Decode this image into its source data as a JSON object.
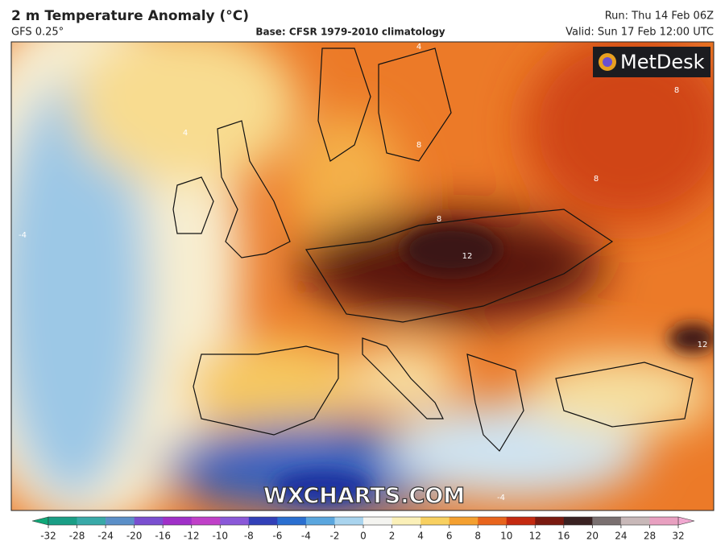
{
  "header": {
    "title": "2 m Temperature Anomaly (°C)",
    "model": "GFS 0.25°",
    "base": "Base: CFSR 1979-2010 climatology",
    "run": "Run: Thu 14 Feb 06Z",
    "valid": "Valid: Sun 17 Feb 12:00 UTC"
  },
  "logo": "MetDesk",
  "watermark": "WXCHARTS.COM",
  "contour_labels": [
    "-4",
    "4",
    "8",
    "12",
    "8",
    "8",
    "4",
    "12",
    "-4",
    "8"
  ],
  "colorbar": {
    "ticks": [
      -32,
      -28,
      -24,
      -20,
      -16,
      -12,
      -10,
      -8,
      -6,
      -4,
      -2,
      0,
      2,
      4,
      6,
      8,
      10,
      12,
      16,
      20,
      24,
      28,
      32
    ],
    "colors": [
      "#1a9e86",
      "#39a9a8",
      "#5b8fc8",
      "#7a4fd0",
      "#a030c8",
      "#c040c8",
      "#8a58d8",
      "#3240b8",
      "#2a6fd0",
      "#5aa6de",
      "#a9d4ee",
      "#f4f4f0",
      "#fbf0b8",
      "#f8d060",
      "#f4a030",
      "#e8641c",
      "#c42a10",
      "#7a1a10",
      "#3a2222",
      "#7a7070",
      "#c8b8b8",
      "#e8a0c0"
    ],
    "under_color": "#10a878",
    "over_color": "#f0a8d0"
  }
}
